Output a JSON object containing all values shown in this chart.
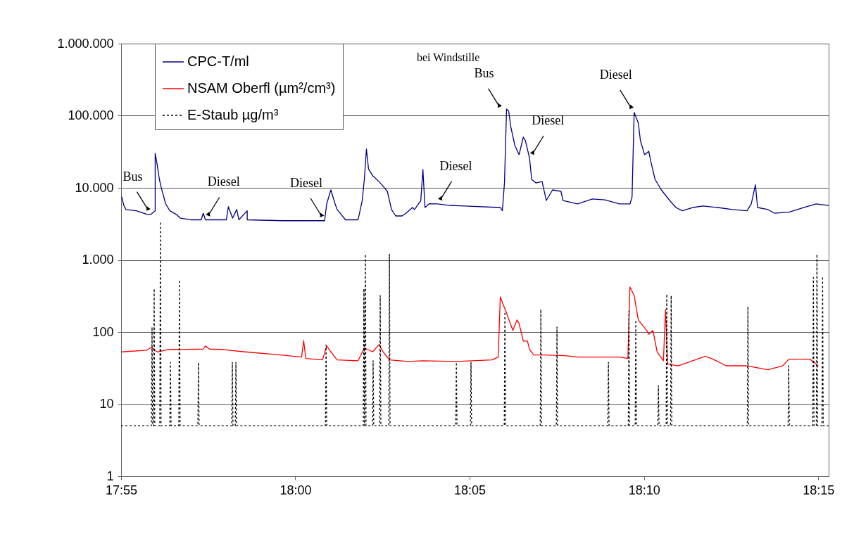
{
  "chart_data": {
    "type": "line",
    "xlim": [
      17.9167,
      18.255
    ],
    "xticks": [
      {
        "value": 17.9167,
        "label": "17:55"
      },
      {
        "value": 18,
        "label": "18:00"
      },
      {
        "value": 18.0833,
        "label": "18:05"
      },
      {
        "value": 18.1667,
        "label": "18:10"
      },
      {
        "value": 18.25,
        "label": "18:15"
      }
    ],
    "ylim": [
      1,
      1000000
    ],
    "yticks": [
      1,
      10,
      100,
      {
        "value": 1000,
        "label": "1.000"
      },
      {
        "value": 10000,
        "label": "10.000"
      },
      {
        "value": 100000,
        "label": "100.000"
      },
      {
        "value": 1000000,
        "label": "1.000.000"
      }
    ],
    "log": "y",
    "grid": "y",
    "legend": "top left",
    "series": [
      {
        "name": "CPC-T/ml",
        "color": "#000080",
        "line_style": "solid",
        "x": [
          17.917,
          17.918,
          17.919,
          17.924,
          17.929,
          17.931,
          17.933,
          17.933,
          17.934,
          17.935,
          17.936,
          17.938,
          17.94,
          17.943,
          17.945,
          17.95,
          17.955,
          17.956,
          17.957,
          17.967,
          17.968,
          17.97,
          17.972,
          17.973,
          17.977,
          17.977,
          17.994,
          18.014,
          18.015,
          18.017,
          18.019,
          18.02,
          18.024,
          18.03,
          18.032,
          18.033,
          18.034,
          18.035,
          18.037,
          18.04,
          18.042,
          18.044,
          18.046,
          18.048,
          18.051,
          18.053,
          18.056,
          18.057,
          18.06,
          18.061,
          18.062,
          18.064,
          18.068,
          18.074,
          18.081,
          18.098,
          18.099,
          18.1,
          18.101,
          18.102,
          18.103,
          18.105,
          18.107,
          18.109,
          18.11,
          18.112,
          18.113,
          18.115,
          18.118,
          18.12,
          18.123,
          18.127,
          18.128,
          18.135,
          18.142,
          18.148,
          18.155,
          18.16,
          18.161,
          18.162,
          18.164,
          18.165,
          18.167,
          18.169,
          18.17,
          18.172,
          18.175,
          18.179,
          18.182,
          18.185,
          18.19,
          18.195,
          18.202,
          18.209,
          18.216,
          18.218,
          18.22,
          18.221,
          18.226,
          18.229,
          18.236,
          18.243,
          18.249,
          18.255
        ],
        "values": [
          7500,
          5700,
          5000,
          4800,
          4300,
          4300,
          4800,
          30000,
          20500,
          13100,
          9800,
          6000,
          4800,
          4300,
          3800,
          3600,
          3600,
          4450,
          3600,
          3600,
          5460,
          3800,
          5000,
          3600,
          4800,
          3600,
          3500,
          3500,
          6000,
          9350,
          6000,
          5000,
          3600,
          3600,
          6670,
          13100,
          34400,
          18300,
          14700,
          12200,
          10500,
          8940,
          5000,
          4070,
          4070,
          4450,
          5330,
          5000,
          6670,
          18000,
          5330,
          6000,
          5970,
          5700,
          5580,
          5330,
          4800,
          11700,
          124000,
          116000,
          70600,
          38500,
          28800,
          50400,
          45100,
          25700,
          13100,
          11700,
          12200,
          6670,
          9350,
          8940,
          6670,
          5970,
          7000,
          6800,
          5970,
          5970,
          7470,
          111000,
          79000,
          45100,
          28800,
          32100,
          23000,
          13100,
          9350,
          6670,
          5330,
          4800,
          5330,
          5580,
          5330,
          4990,
          4800,
          5970,
          11000,
          5330,
          4990,
          4450,
          4600,
          5330,
          5970,
          5700
        ]
      },
      {
        "name": "NSAM Oberfl (µm²/cm³)",
        "color": "#ff0000",
        "line_style": "solid",
        "x": [
          17.917,
          17.929,
          17.931,
          17.934,
          17.939,
          17.956,
          17.957,
          17.959,
          17.966,
          17.976,
          17.993,
          18.003,
          18.004,
          18.005,
          18.013,
          18.015,
          18.017,
          18.02,
          18.03,
          18.033,
          18.037,
          18.04,
          18.042,
          18.045,
          18.054,
          18.061,
          18.077,
          18.094,
          18.097,
          18.098,
          18.099,
          18.101,
          18.104,
          18.106,
          18.107,
          18.109,
          18.111,
          18.112,
          18.114,
          18.119,
          18.129,
          18.135,
          18.149,
          18.155,
          18.159,
          18.16,
          18.162,
          18.164,
          18.168,
          18.169,
          18.171,
          18.173,
          18.176,
          18.177,
          18.178,
          18.183,
          18.196,
          18.199,
          18.206,
          18.216,
          18.226,
          18.233,
          18.236,
          18.246,
          18.249,
          18.25
        ],
        "values": [
          53,
          56,
          61,
          53,
          57,
          58,
          64,
          58,
          57,
          53,
          48,
          45,
          76,
          43,
          41,
          64,
          53,
          41,
          40,
          60,
          53,
          67,
          53,
          41,
          39,
          40,
          39,
          41,
          45,
          308,
          257,
          183,
          105,
          147,
          131,
          75,
          75,
          57,
          48,
          48,
          47,
          45,
          45,
          45,
          43,
          421,
          321,
          147,
          105,
          93,
          105,
          53,
          40,
          205,
          36,
          34,
          46,
          43,
          34,
          34,
          30,
          34,
          42,
          42,
          36,
          34
        ]
      },
      {
        "name": "E-Staub µg/m³",
        "color": "#000000",
        "line_style": "dashed",
        "x": [
          17.9167,
          17.9312,
          17.9315,
          17.9318,
          17.9322,
          17.9325,
          17.9328,
          17.9352,
          17.9355,
          17.9358,
          17.94,
          17.9403,
          17.9406,
          17.9443,
          17.9446,
          17.9449,
          17.9534,
          17.9537,
          17.954,
          17.9696,
          17.9699,
          17.9702,
          17.9713,
          17.9716,
          17.9719,
          18.0144,
          18.0147,
          18.015,
          18.0325,
          18.0328,
          18.0331,
          18.0335,
          18.0338,
          18.0369,
          18.0372,
          18.0375,
          18.0403,
          18.0406,
          18.0409,
          18.0447,
          18.045,
          18.0453,
          18.0767,
          18.077,
          18.0773,
          18.0837,
          18.084,
          18.0843,
          18.0999,
          18.1002,
          18.1005,
          18.1171,
          18.1174,
          18.1177,
          18.1248,
          18.1251,
          18.1254,
          18.1494,
          18.1497,
          18.15,
          18.1592,
          18.1595,
          18.1598,
          18.1625,
          18.1628,
          18.1631,
          18.1733,
          18.1736,
          18.1739,
          18.1773,
          18.1776,
          18.1779,
          18.1794,
          18.1797,
          18.18,
          18.2161,
          18.2164,
          18.2167,
          18.2356,
          18.2359,
          18.2362,
          18.2474,
          18.2477,
          18.248,
          18.2491,
          18.2494,
          18.2497,
          18.2518,
          18.2521,
          18.2524,
          18.255
        ],
        "values": [
          5,
          5,
          117,
          5,
          5,
          400,
          5,
          5,
          3400,
          5,
          5,
          38,
          5,
          5,
          530,
          5,
          5,
          38,
          5,
          5,
          38,
          5,
          5,
          38,
          5,
          5,
          66,
          5,
          5,
          400,
          5,
          1200,
          5,
          5,
          40,
          5,
          5,
          320,
          5,
          5,
          1200,
          5,
          5,
          38,
          5,
          5,
          38,
          5,
          5,
          190,
          5,
          5,
          206,
          5,
          5,
          117,
          5,
          5,
          38,
          5,
          5,
          195,
          5,
          5,
          147,
          5,
          5,
          18,
          5,
          5,
          335,
          5,
          5,
          320,
          5,
          5,
          225,
          5,
          5,
          34,
          5,
          5,
          570,
          5,
          5,
          1200,
          5,
          5,
          590,
          5,
          5
        ]
      }
    ],
    "annotations": [
      {
        "text": "Bus",
        "x": 17.931,
        "y": 4300
      },
      {
        "text": "Diesel",
        "x": 17.957,
        "y": 3600
      },
      {
        "text": "Diesel",
        "x": 18.014,
        "y": 3500
      },
      {
        "text": "Diesel",
        "x": 18.068,
        "y": 5970
      },
      {
        "text": "Bus",
        "x": 18.099,
        "y": 116000
      },
      {
        "text": "Diesel",
        "x": 18.112,
        "y": 25700
      },
      {
        "text": "Diesel",
        "x": 18.162,
        "y": 111000
      },
      "bei Windstille"
    ]
  }
}
